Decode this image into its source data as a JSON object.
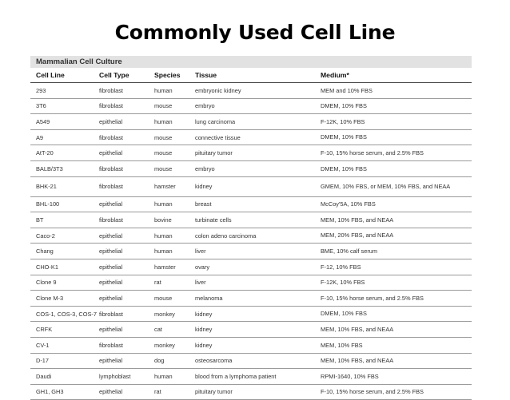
{
  "slide": {
    "title": "Commonly Used Cell Line"
  },
  "table": {
    "caption": "Mammalian Cell Culture",
    "headers": [
      "Cell Line",
      "Cell Type",
      "Species",
      "Tissue",
      "Medium*"
    ],
    "rows": [
      [
        "293",
        "fibroblast",
        "human",
        "embryonic kidney",
        "MEM and 10% FBS"
      ],
      [
        "3T6",
        "fibroblast",
        "mouse",
        "embryo",
        "DMEM, 10% FBS"
      ],
      [
        "A549",
        "epithelial",
        "human",
        "lung carcinoma",
        "F-12K, 10% FBS"
      ],
      [
        "A9",
        "fibroblast",
        "mouse",
        "connective tissue",
        "DMEM, 10% FBS"
      ],
      [
        "AtT-20",
        "epithelial",
        "mouse",
        "pituitary tumor",
        "F-10, 15% horse serum, and 2.5% FBS"
      ],
      [
        "BALB/3T3",
        "fibroblast",
        "mouse",
        "embryo",
        "DMEM, 10% FBS"
      ],
      [
        "BHK-21",
        "fibroblast",
        "hamster",
        "kidney",
        "GMEM, 10% FBS, or MEM, 10% FBS, and NEAA"
      ],
      [
        "BHL-100",
        "epithelial",
        "human",
        "breast",
        "McCoy'5A, 10% FBS"
      ],
      [
        "BT",
        "fibroblast",
        "bovine",
        "turbinate cells",
        "MEM, 10% FBS, and NEAA"
      ],
      [
        "Caco-2",
        "epithelial",
        "human",
        "colon adeno carcinoma",
        "MEM, 20% FBS, and NEAA"
      ],
      [
        "Chang",
        "epithelial",
        "human",
        "liver",
        "BME, 10% calf serum"
      ],
      [
        "CHO-K1",
        "epithelial",
        "hamster",
        "ovary",
        "F-12, 10% FBS"
      ],
      [
        "Clone 9",
        "epithelial",
        "rat",
        "liver",
        "F-12K, 10% FBS"
      ],
      [
        "Clone M-3",
        "epithelial",
        "mouse",
        "melanoma",
        "F-10, 15% horse serum, and 2.5% FBS"
      ],
      [
        "COS-1, COS-3, COS-7",
        "fibroblast",
        "monkey",
        "kidney",
        "DMEM, 10% FBS"
      ],
      [
        "CRFK",
        "epithelial",
        "cat",
        "kidney",
        "MEM, 10% FBS, and NEAA"
      ],
      [
        "CV-1",
        "fibroblast",
        "monkey",
        "kidney",
        "MEM, 10% FBS"
      ],
      [
        "D-17",
        "epithelial",
        "dog",
        "osteosarcoma",
        "MEM, 10% FBS, and NEAA"
      ],
      [
        "Daudi",
        "lymphoblast",
        "human",
        "blood from a lymphoma patient",
        "RPMI-1640, 10% FBS"
      ],
      [
        "GH1, GH3",
        "epithelial",
        "rat",
        "pituitary tumor",
        "F-10, 15% horse serum, and 2.5% FBS"
      ]
    ]
  }
}
